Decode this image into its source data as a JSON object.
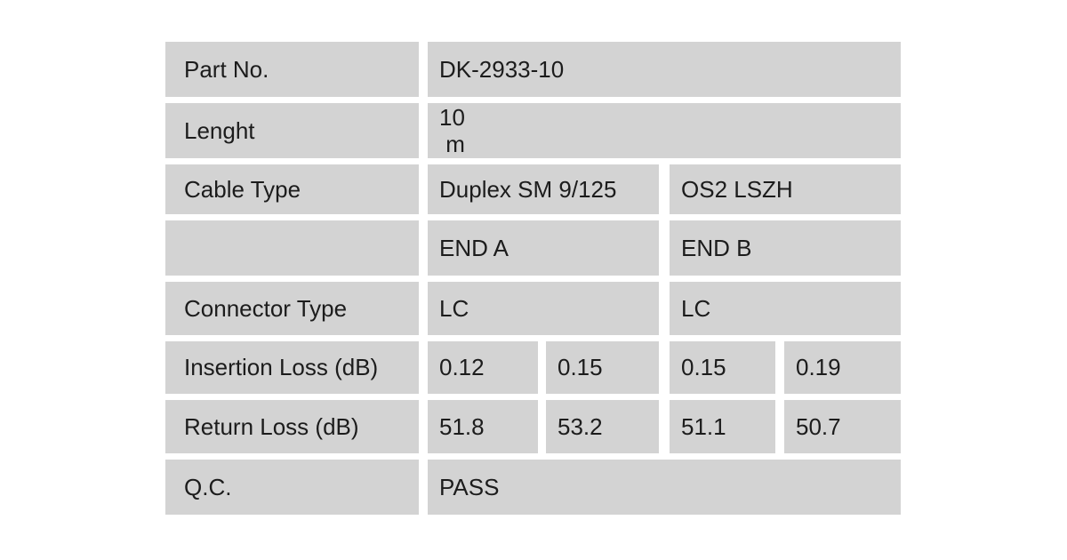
{
  "colors": {
    "page_background": "#ffffff",
    "cell_background": "#d3d3d3",
    "text": "#1c1c1c"
  },
  "table": {
    "rows": {
      "part_no": {
        "label": "Part No.",
        "value": "DK-2933-10"
      },
      "length": {
        "label": "Lenght",
        "value": "10\n m"
      },
      "cable_type": {
        "label": "Cable Type",
        "value_a": "Duplex SM 9/125",
        "value_b": "OS2 LSZH"
      },
      "ends": {
        "label": "",
        "end_a": "END A",
        "end_b": "END B"
      },
      "connector_type": {
        "label": "Connector Type",
        "end_a": "LC",
        "end_b": "LC"
      },
      "insertion_loss": {
        "label": "Insertion Loss (dB)",
        "values": [
          "0.12",
          "0.15",
          "0.15",
          "0.19"
        ]
      },
      "return_loss": {
        "label": "Return Loss (dB)",
        "values": [
          "51.8",
          "53.2",
          "51.1",
          "50.7"
        ]
      },
      "qc": {
        "label": "Q.C.",
        "value": "PASS"
      }
    }
  }
}
